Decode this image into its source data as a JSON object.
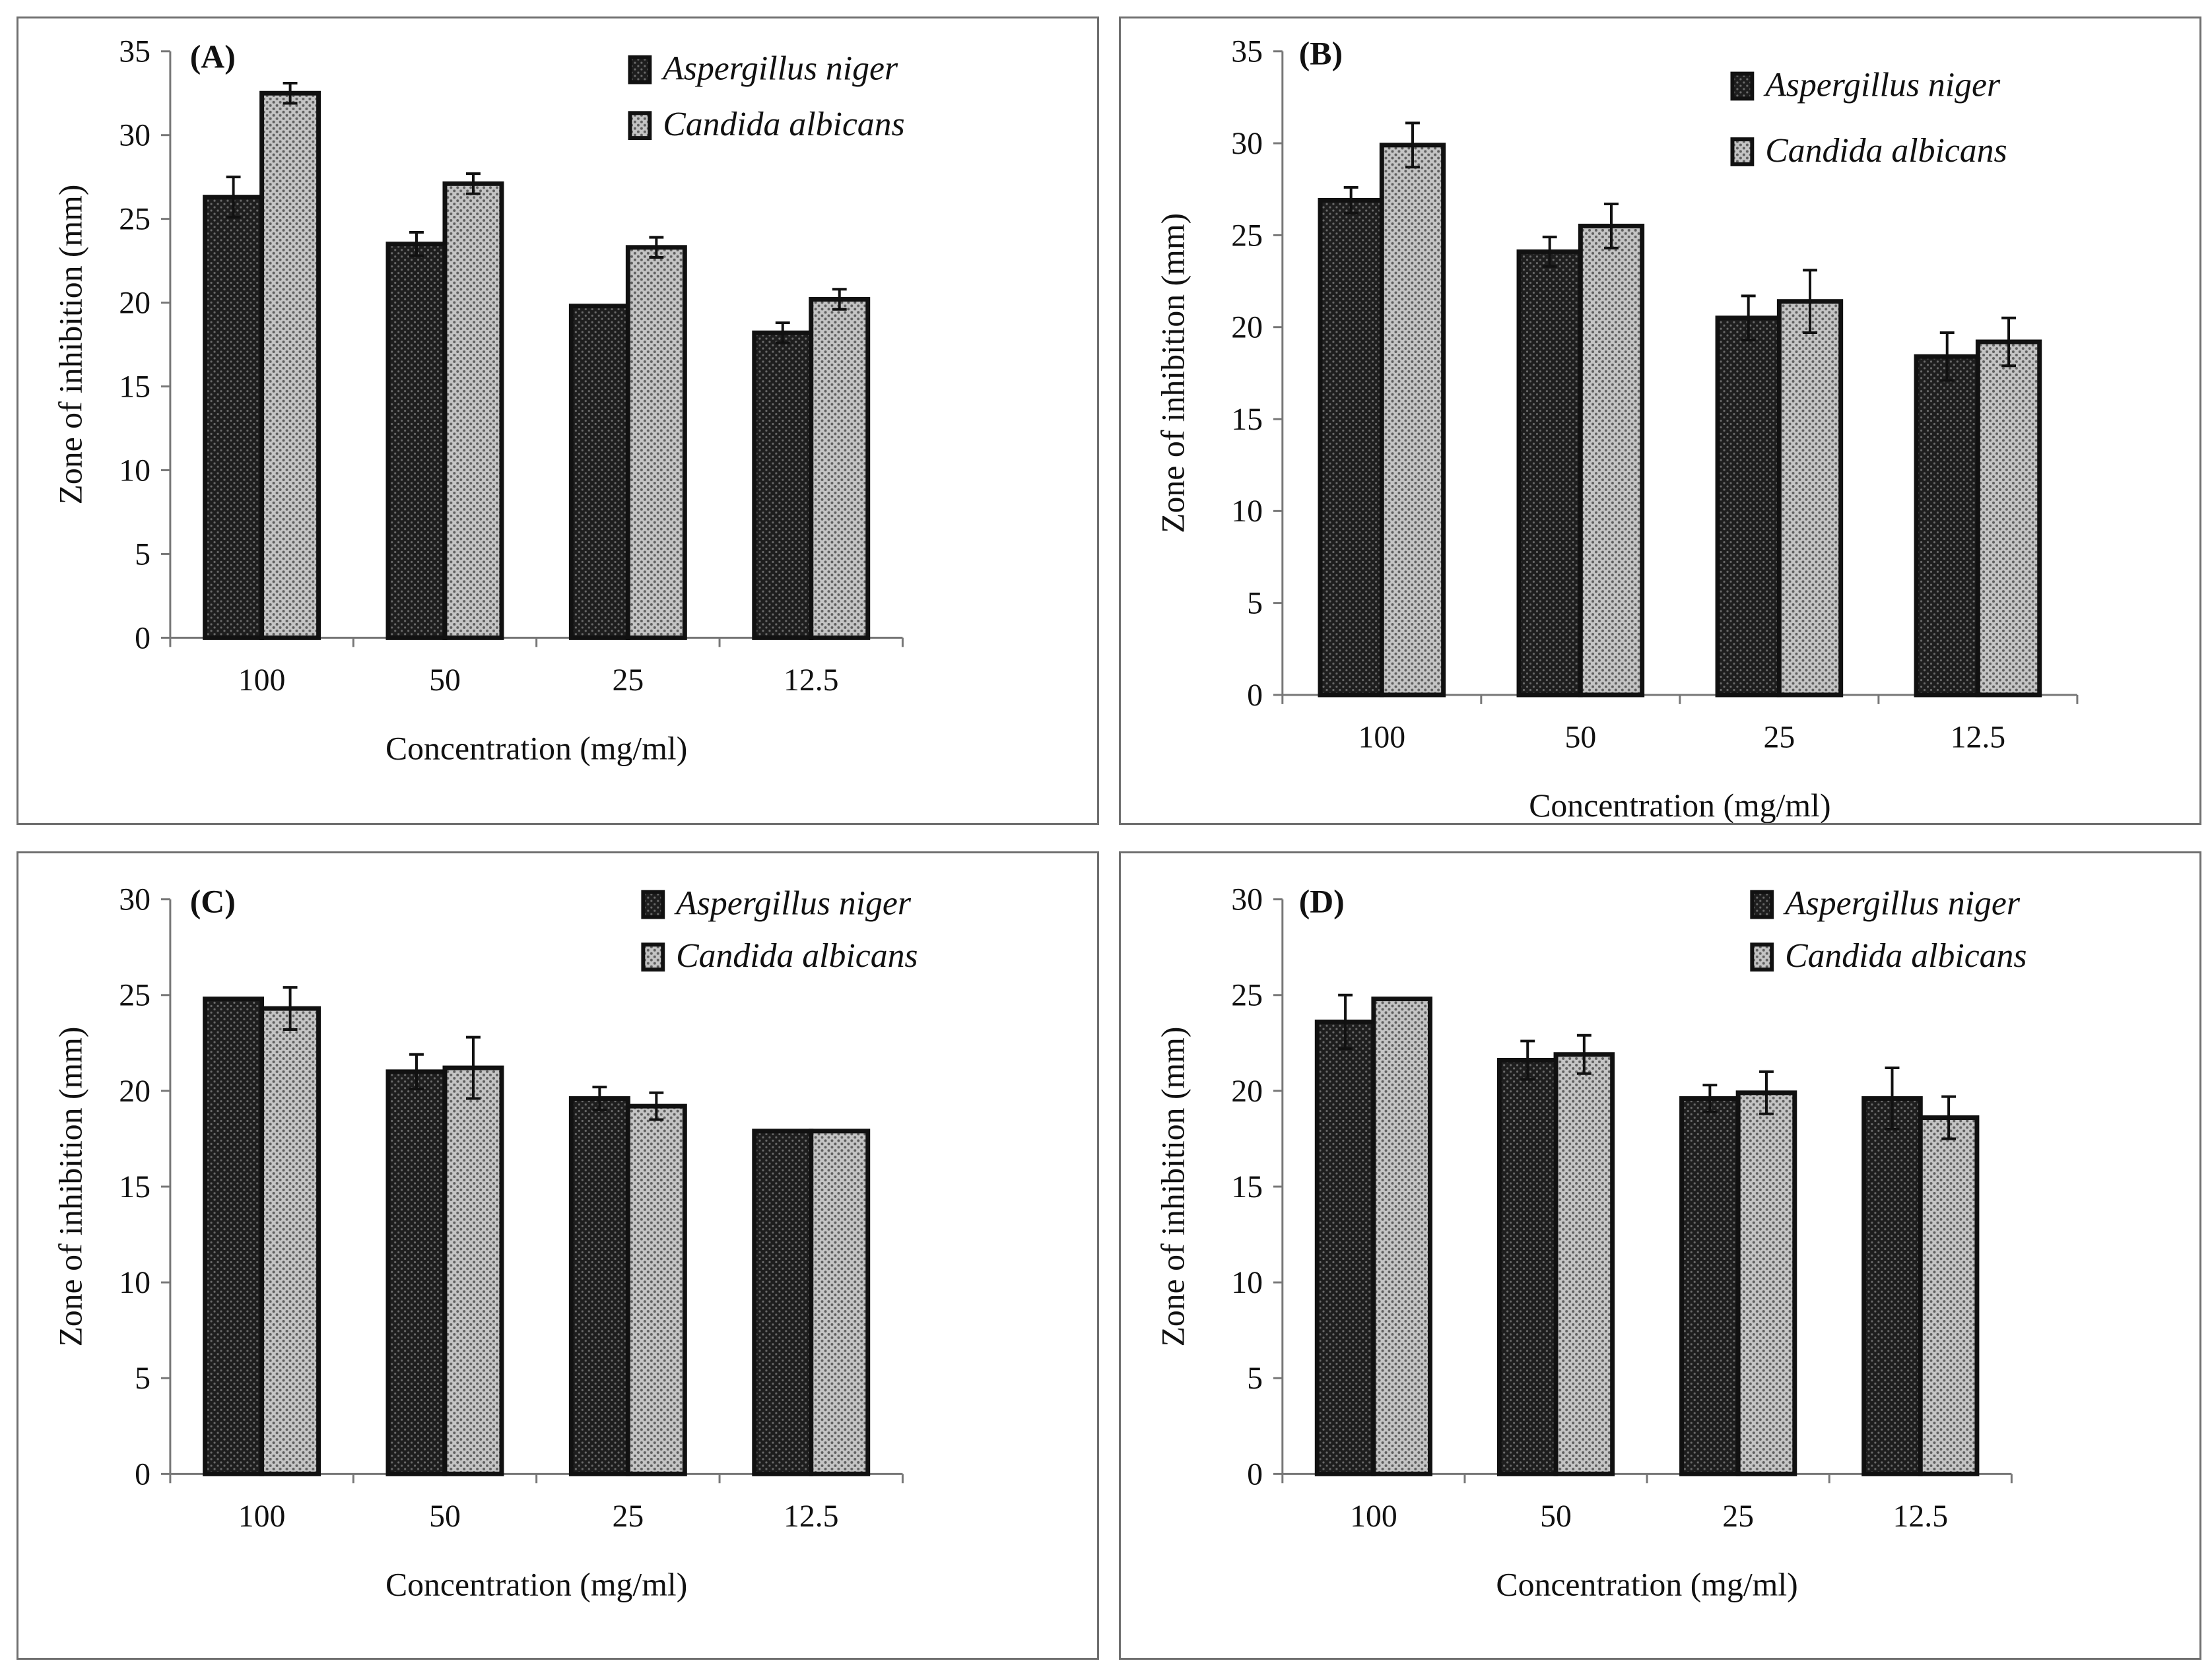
{
  "colors": {
    "series_dark": "#1e1e1e",
    "series_light": "#9a9a9a",
    "axis": "#777777",
    "panel_border": "#6f6f6f"
  },
  "chart_data": [
    {
      "type": "bar",
      "label": "(A)",
      "categories": [
        "100",
        "50",
        "25",
        "12.5"
      ],
      "xlabel": "Concentration  (mg/ml)",
      "ylabel": "Zone of inhibition  (mm)",
      "ylim": [
        0,
        35
      ],
      "yticks": [
        0,
        5,
        10,
        15,
        20,
        25,
        30,
        35
      ],
      "legend": "top-right",
      "grid": false,
      "series": [
        {
          "name": "Aspergillus niger",
          "values": [
            26.3,
            23.5,
            19.8,
            18.2
          ],
          "errors": [
            1.2,
            0.7,
            0,
            0.6
          ]
        },
        {
          "name": "Candida albicans",
          "values": [
            32.5,
            27.1,
            23.3,
            20.2
          ],
          "errors": [
            0.6,
            0.6,
            0.6,
            0.6
          ]
        }
      ]
    },
    {
      "type": "bar",
      "label": "(B)",
      "categories": [
        "100",
        "50",
        "25",
        "12.5"
      ],
      "xlabel": "Concentration  (mg/ml)",
      "ylabel": "Zone of inhibition  (mm)",
      "ylim": [
        0,
        35
      ],
      "yticks": [
        0,
        5,
        10,
        15,
        20,
        25,
        30,
        35
      ],
      "legend": "top-right",
      "grid": false,
      "series": [
        {
          "name": "Aspergillus niger",
          "values": [
            26.9,
            24.1,
            20.5,
            18.4
          ],
          "errors": [
            0.7,
            0.8,
            1.2,
            1.3
          ]
        },
        {
          "name": "Candida albicans",
          "values": [
            29.9,
            25.5,
            21.4,
            19.2
          ],
          "errors": [
            1.2,
            1.2,
            1.7,
            1.3
          ]
        }
      ]
    },
    {
      "type": "bar",
      "label": "(C)",
      "categories": [
        "100",
        "50",
        "25",
        "12.5"
      ],
      "xlabel": "Concentration  (mg/ml)",
      "ylabel": "Zone of inhibition  (mm)",
      "ylim": [
        0,
        30
      ],
      "yticks": [
        0,
        5,
        10,
        15,
        20,
        25,
        30
      ],
      "legend": "top-right",
      "grid": false,
      "series": [
        {
          "name": "Aspergillus niger",
          "values": [
            24.8,
            21.0,
            19.6,
            17.9
          ],
          "errors": [
            0,
            0.9,
            0.6,
            0
          ]
        },
        {
          "name": "Candida albicans",
          "values": [
            24.3,
            21.2,
            19.2,
            17.9
          ],
          "errors": [
            1.1,
            1.6,
            0.7,
            0
          ]
        }
      ]
    },
    {
      "type": "bar",
      "label": "(D)",
      "categories": [
        "100",
        "50",
        "25",
        "12.5"
      ],
      "xlabel": "Concentration  (mg/ml)",
      "ylabel": "Zone of inhibition  (mm)",
      "ylim": [
        0,
        30
      ],
      "yticks": [
        0,
        5,
        10,
        15,
        20,
        25,
        30
      ],
      "legend": "top-right",
      "grid": false,
      "series": [
        {
          "name": "Aspergillus niger",
          "values": [
            23.6,
            21.6,
            19.6,
            19.6
          ],
          "errors": [
            1.4,
            1.0,
            0.7,
            1.6
          ]
        },
        {
          "name": "Candida albicans",
          "values": [
            24.8,
            21.9,
            19.9,
            18.6
          ],
          "errors": [
            0,
            1.0,
            1.1,
            1.1
          ]
        }
      ]
    }
  ]
}
